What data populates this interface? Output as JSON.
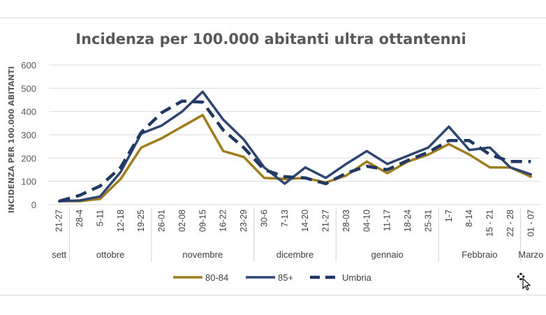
{
  "chart_data": {
    "type": "line",
    "title": "Incidenza per 100.000 abitanti ultra ottantenni",
    "ylabel": "INCIDENZA PER 100.000 ABITANTI",
    "xlabel": "",
    "ylim": [
      0,
      600
    ],
    "yticks": [
      0,
      100,
      200,
      300,
      400,
      500,
      600
    ],
    "grid": true,
    "legend_position": "bottom",
    "categories": [
      "21-27",
      "28-4",
      "5-11",
      "12-18",
      "19-25",
      "26-01",
      "02-08",
      "09-15",
      "16-22",
      "23-29",
      "30-6",
      "7-13",
      "14-20",
      "21-27",
      "28-03",
      "04-10",
      "11-17",
      "18-24",
      "25-31",
      "1-7",
      "8-14",
      "15 - 21",
      "22 - 28",
      "01 - 07"
    ],
    "month_groups": [
      {
        "label": "sett",
        "start": 0,
        "end": 0
      },
      {
        "label": "ottobre",
        "start": 1,
        "end": 4
      },
      {
        "label": "novembre",
        "start": 5,
        "end": 9
      },
      {
        "label": "dicembre",
        "start": 10,
        "end": 13
      },
      {
        "label": "gennaio",
        "start": 14,
        "end": 18
      },
      {
        "label": "Febbraio",
        "start": 19,
        "end": 22
      },
      {
        "label": "Marzo",
        "start": 23,
        "end": 23
      }
    ],
    "series": [
      {
        "name": "80-84",
        "color": "#a07d1c",
        "style": "solid",
        "values": [
          15,
          15,
          25,
          110,
          245,
          285,
          335,
          385,
          230,
          205,
          115,
          110,
          115,
          95,
          125,
          185,
          135,
          185,
          215,
          260,
          215,
          160,
          160,
          120
        ]
      },
      {
        "name": "85+",
        "color": "#2e4572",
        "style": "solid",
        "values": [
          15,
          18,
          35,
          140,
          305,
          340,
          400,
          485,
          365,
          280,
          160,
          90,
          160,
          115,
          175,
          230,
          175,
          210,
          245,
          335,
          235,
          245,
          160,
          130
        ]
      },
      {
        "name": "Umbria",
        "color": "#1f3864",
        "style": "dashed",
        "values": [
          15,
          40,
          80,
          160,
          310,
          395,
          445,
          440,
          320,
          245,
          150,
          120,
          115,
          90,
          135,
          165,
          150,
          190,
          225,
          275,
          275,
          215,
          185,
          185
        ]
      }
    ]
  }
}
